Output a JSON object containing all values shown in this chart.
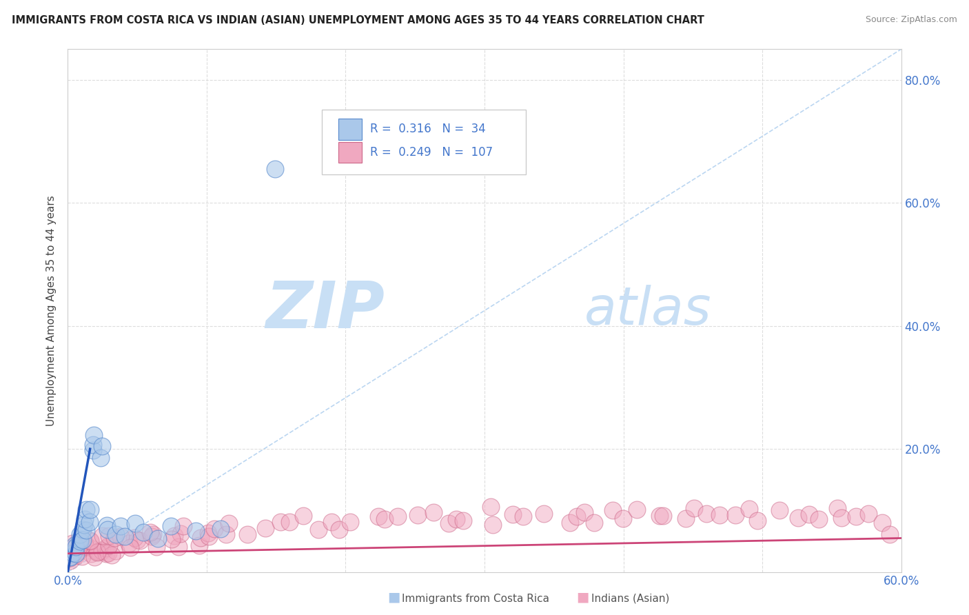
{
  "title": "IMMIGRANTS FROM COSTA RICA VS INDIAN (ASIAN) UNEMPLOYMENT AMONG AGES 35 TO 44 YEARS CORRELATION CHART",
  "source": "Source: ZipAtlas.com",
  "ylabel": "Unemployment Among Ages 35 to 44 years",
  "xlim": [
    0.0,
    0.6
  ],
  "ylim": [
    0.0,
    0.85
  ],
  "xticks": [
    0.0,
    0.1,
    0.2,
    0.3,
    0.4,
    0.5,
    0.6
  ],
  "yticks": [
    0.0,
    0.2,
    0.4,
    0.6,
    0.8
  ],
  "right_yticklabels": [
    "",
    "20.0%",
    "40.0%",
    "60.0%",
    "80.0%"
  ],
  "blue_scatter_color": "#aac8ea",
  "blue_edge_color": "#5588cc",
  "pink_scatter_color": "#f0a8c0",
  "pink_edge_color": "#cc6688",
  "blue_line_color": "#2255bb",
  "pink_line_color": "#cc4477",
  "diag_line_color": "#aaccee",
  "watermark_zip_color": "#c8dff5",
  "watermark_atlas_color": "#c8dff5",
  "grid_color": "#dddddd",
  "background_color": "#ffffff",
  "tick_label_color": "#4477cc",
  "legend_R1": "0.316",
  "legend_N1": "34",
  "legend_R2": "0.249",
  "legend_N2": "107",
  "legend_label1": "Immigrants from Costa Rica",
  "legend_label2": "Indians (Asian)",
  "costa_rica_x": [
    0.001,
    0.002,
    0.003,
    0.004,
    0.005,
    0.006,
    0.007,
    0.008,
    0.009,
    0.01,
    0.011,
    0.012,
    0.013,
    0.014,
    0.015,
    0.016,
    0.017,
    0.018,
    0.019,
    0.02,
    0.022,
    0.025,
    0.028,
    0.03,
    0.035,
    0.038,
    0.042,
    0.048,
    0.055,
    0.065,
    0.075,
    0.09,
    0.11,
    0.15
  ],
  "costa_rica_y": [
    0.02,
    0.03,
    0.03,
    0.04,
    0.05,
    0.04,
    0.05,
    0.06,
    0.05,
    0.07,
    0.06,
    0.08,
    0.07,
    0.08,
    0.1,
    0.09,
    0.1,
    0.2,
    0.21,
    0.22,
    0.18,
    0.2,
    0.08,
    0.07,
    0.06,
    0.07,
    0.06,
    0.08,
    0.07,
    0.06,
    0.07,
    0.06,
    0.07,
    0.65
  ],
  "indian_x": [
    0.001,
    0.002,
    0.003,
    0.004,
    0.005,
    0.006,
    0.007,
    0.008,
    0.009,
    0.01,
    0.011,
    0.012,
    0.013,
    0.014,
    0.015,
    0.016,
    0.018,
    0.02,
    0.022,
    0.025,
    0.028,
    0.03,
    0.033,
    0.036,
    0.04,
    0.043,
    0.047,
    0.05,
    0.055,
    0.06,
    0.065,
    0.07,
    0.075,
    0.08,
    0.085,
    0.09,
    0.095,
    0.1,
    0.105,
    0.11,
    0.115,
    0.12,
    0.13,
    0.14,
    0.15,
    0.16,
    0.17,
    0.18,
    0.19,
    0.2,
    0.21,
    0.22,
    0.23,
    0.24,
    0.25,
    0.26,
    0.27,
    0.28,
    0.29,
    0.3,
    0.31,
    0.32,
    0.33,
    0.34,
    0.35,
    0.36,
    0.37,
    0.38,
    0.39,
    0.4,
    0.41,
    0.42,
    0.43,
    0.44,
    0.45,
    0.46,
    0.47,
    0.48,
    0.49,
    0.5,
    0.51,
    0.52,
    0.53,
    0.54,
    0.55,
    0.56,
    0.57,
    0.58,
    0.59,
    0.595,
    0.001,
    0.003,
    0.005,
    0.007,
    0.009,
    0.012,
    0.015,
    0.018,
    0.022,
    0.026,
    0.03,
    0.035,
    0.04,
    0.05,
    0.06,
    0.075,
    0.09
  ],
  "indian_y": [
    0.02,
    0.03,
    0.02,
    0.03,
    0.04,
    0.03,
    0.04,
    0.03,
    0.04,
    0.03,
    0.04,
    0.03,
    0.04,
    0.03,
    0.04,
    0.03,
    0.04,
    0.03,
    0.04,
    0.03,
    0.04,
    0.03,
    0.04,
    0.03,
    0.04,
    0.05,
    0.04,
    0.05,
    0.04,
    0.05,
    0.06,
    0.05,
    0.06,
    0.05,
    0.06,
    0.05,
    0.06,
    0.07,
    0.06,
    0.07,
    0.06,
    0.07,
    0.06,
    0.07,
    0.08,
    0.07,
    0.08,
    0.07,
    0.08,
    0.07,
    0.08,
    0.09,
    0.08,
    0.09,
    0.08,
    0.09,
    0.08,
    0.09,
    0.08,
    0.09,
    0.08,
    0.09,
    0.08,
    0.09,
    0.08,
    0.09,
    0.1,
    0.09,
    0.1,
    0.09,
    0.1,
    0.09,
    0.1,
    0.09,
    0.1,
    0.09,
    0.1,
    0.09,
    0.1,
    0.09,
    0.1,
    0.09,
    0.1,
    0.09,
    0.1,
    0.09,
    0.1,
    0.09,
    0.08,
    0.07,
    0.04,
    0.04,
    0.05,
    0.05,
    0.04,
    0.05,
    0.04,
    0.05,
    0.04,
    0.05,
    0.06,
    0.05,
    0.06,
    0.05,
    0.06,
    0.06,
    0.07
  ]
}
